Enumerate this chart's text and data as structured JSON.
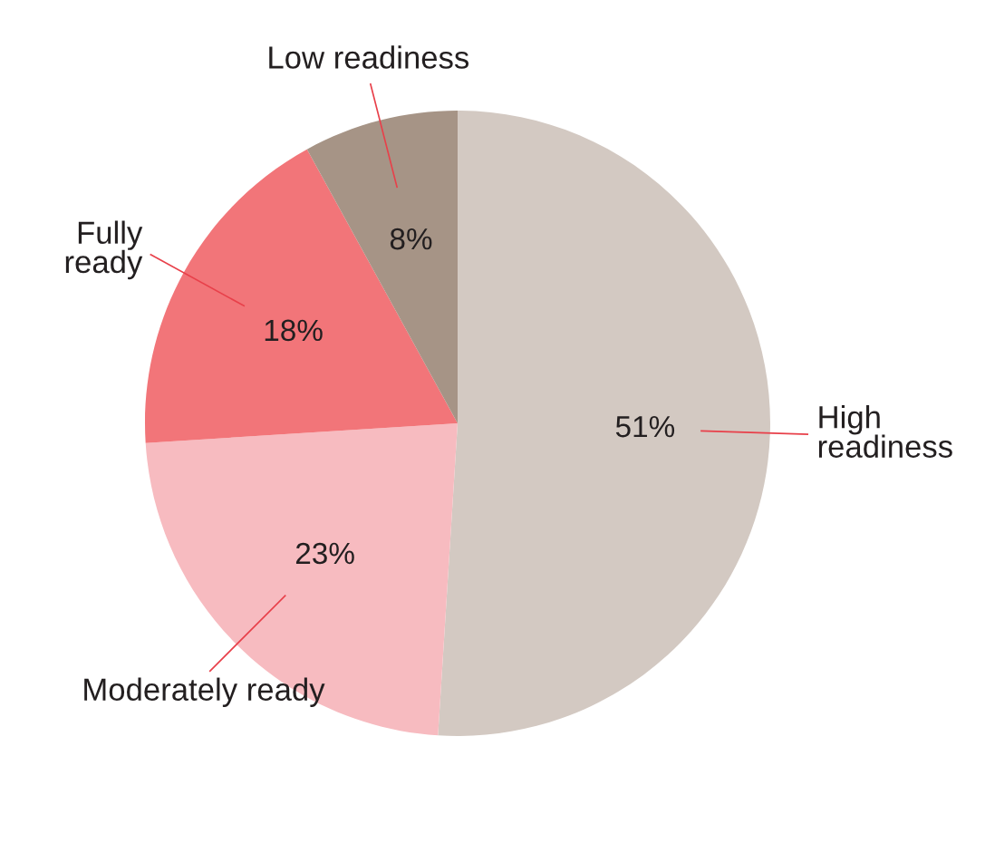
{
  "chart_data": {
    "type": "pie",
    "categories": [
      "High readiness",
      "Moderately ready",
      "Fully ready",
      "Low readiness"
    ],
    "values": [
      51,
      23,
      18,
      8
    ],
    "colors": [
      "#d3c9c2",
      "#f7bbc0",
      "#f27579",
      "#a69486"
    ],
    "value_labels": [
      "51%",
      "23%",
      "18%",
      "8%"
    ],
    "legend": false
  }
}
